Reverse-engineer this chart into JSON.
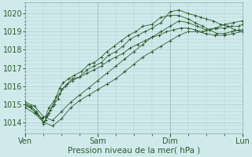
{
  "background_color": "#d0eaec",
  "grid_color_major": "#aaccd0",
  "grid_color_minor": "#aaccd0",
  "line_color": "#2d5c2d",
  "ylabel_values": [
    1014,
    1015,
    1016,
    1017,
    1018,
    1019,
    1020
  ],
  "ylim": [
    1013.4,
    1020.6
  ],
  "xlabel": "Pression niveau de la mer( hPa )",
  "xtick_labels": [
    "Ven",
    "Sam",
    "Dim",
    "Lun"
  ],
  "axis_fontsize": 7.5,
  "tick_fontsize": 7,
  "series": [
    {
      "x": [
        0,
        0.3,
        0.6,
        0.9,
        1.0,
        1.1,
        1.2,
        1.4,
        1.6,
        1.8,
        2.0,
        2.3,
        2.6,
        3.0,
        3.4,
        3.8,
        4.2,
        4.6,
        5.0,
        5.4,
        5.8,
        6.2,
        6.6,
        7.0,
        7.4,
        7.8,
        8.2,
        8.6,
        9.0,
        9.4,
        9.8,
        10.2,
        10.6,
        11.0,
        11.4,
        11.8,
        12.0
      ],
      "y": [
        1015.0,
        1014.9,
        1014.6,
        1014.2,
        1014.0,
        1014.1,
        1014.4,
        1014.7,
        1015.0,
        1015.3,
        1015.8,
        1016.1,
        1016.4,
        1016.5,
        1016.7,
        1016.9,
        1017.1,
        1017.4,
        1017.6,
        1017.8,
        1018.1,
        1018.3,
        1018.5,
        1018.7,
        1018.8,
        1019.0,
        1019.1,
        1019.2,
        1019.2,
        1019.1,
        1019.0,
        1019.1,
        1019.2,
        1019.2,
        1019.3,
        1019.3,
        1019.4
      ]
    },
    {
      "x": [
        0,
        0.3,
        0.6,
        0.9,
        1.0,
        1.1,
        1.3,
        1.5,
        1.7,
        1.9,
        2.1,
        2.4,
        2.7,
        3.1,
        3.5,
        3.8,
        4.2,
        4.5,
        4.9,
        5.3,
        5.7,
        6.1,
        6.5,
        7.0,
        7.5,
        8.0,
        8.5,
        9.0,
        9.4,
        9.8,
        10.2,
        10.6,
        11.0,
        11.4,
        11.8,
        12.0
      ],
      "y": [
        1014.9,
        1014.8,
        1014.5,
        1014.2,
        1013.9,
        1014.1,
        1014.5,
        1014.9,
        1015.4,
        1015.9,
        1016.2,
        1016.4,
        1016.6,
        1016.8,
        1017.2,
        1017.3,
        1017.6,
        1017.9,
        1018.2,
        1018.5,
        1018.8,
        1019.0,
        1019.3,
        1019.4,
        1019.8,
        1019.9,
        1019.9,
        1019.7,
        1019.5,
        1019.3,
        1019.1,
        1018.9,
        1018.9,
        1019.0,
        1019.1,
        1019.1
      ]
    },
    {
      "x": [
        0,
        0.3,
        0.6,
        0.9,
        1.1,
        1.3,
        1.6,
        1.9,
        2.2,
        2.6,
        3.0,
        3.4,
        3.8,
        4.2,
        4.6,
        5.0,
        5.4,
        5.8,
        6.2,
        6.6,
        7.0,
        7.5,
        8.0,
        8.5,
        9.0,
        9.4,
        9.7,
        10.0,
        10.4,
        10.8,
        11.2,
        11.6,
        12.0
      ],
      "y": [
        1015.0,
        1014.8,
        1014.5,
        1014.2,
        1014.3,
        1014.8,
        1015.2,
        1015.6,
        1016.0,
        1016.3,
        1016.5,
        1016.9,
        1017.1,
        1017.3,
        1017.7,
        1017.9,
        1018.2,
        1018.6,
        1018.8,
        1019.0,
        1019.2,
        1019.5,
        1020.1,
        1020.2,
        1020.0,
        1019.9,
        1019.8,
        1019.7,
        1019.6,
        1019.4,
        1019.3,
        1019.1,
        1019.0
      ]
    },
    {
      "x": [
        0,
        0.5,
        1.0,
        1.5,
        2.0,
        2.5,
        3.0,
        3.5,
        4.0,
        4.5,
        5.0,
        5.5,
        6.0,
        6.5,
        7.0,
        7.5,
        8.0,
        8.5,
        9.0,
        9.5,
        10.0,
        10.5,
        11.0,
        11.5,
        12.0
      ],
      "y": [
        1014.8,
        1014.5,
        1014.0,
        1013.8,
        1014.2,
        1014.8,
        1015.2,
        1015.5,
        1015.8,
        1016.1,
        1016.4,
        1016.8,
        1017.2,
        1017.6,
        1017.9,
        1018.2,
        1018.5,
        1018.8,
        1019.0,
        1019.0,
        1018.9,
        1018.8,
        1018.8,
        1018.9,
        1019.0
      ]
    },
    {
      "x": [
        0,
        0.5,
        1.0,
        1.5,
        2.0,
        2.5,
        3.0,
        3.5,
        4.0,
        4.5,
        5.0,
        5.5,
        6.0,
        6.5,
        7.0,
        7.5,
        8.0,
        8.5,
        9.0,
        9.5,
        10.0,
        10.5,
        11.0,
        11.5,
        12.0
      ],
      "y": [
        1015.1,
        1014.9,
        1014.3,
        1014.1,
        1014.6,
        1015.1,
        1015.5,
        1015.9,
        1016.3,
        1016.7,
        1017.1,
        1017.5,
        1017.9,
        1018.3,
        1018.7,
        1019.0,
        1019.3,
        1019.6,
        1019.5,
        1019.3,
        1019.1,
        1019.2,
        1019.4,
        1019.5,
        1019.6
      ]
    }
  ],
  "xtick_positions": [
    0,
    4,
    8,
    12
  ]
}
